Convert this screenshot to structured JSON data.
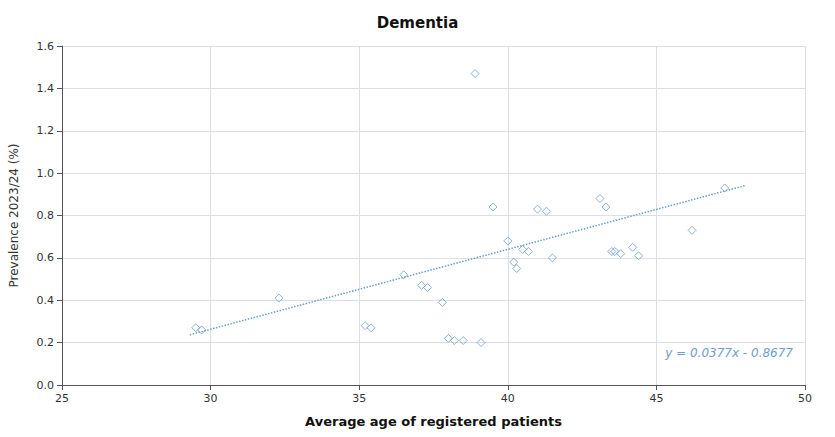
{
  "chart_data": {
    "type": "scatter",
    "title": "Dementia",
    "xlabel": "Average age of registered patients",
    "ylabel": "Prevalence 2023/24 (%)",
    "xlim": [
      25,
      50
    ],
    "ylim": [
      0.0,
      1.6
    ],
    "xticks": [
      25,
      30,
      35,
      40,
      45,
      50
    ],
    "yticks": [
      {
        "value": 0.0,
        "label": "0.0"
      },
      0.2,
      0.4,
      0.6,
      0.8,
      {
        "value": 1.0,
        "label": "1.0"
      },
      1.2,
      1.4,
      1.6
    ],
    "grid": true,
    "series": [
      {
        "type": "scatter",
        "color": "#6e9ec8",
        "marker": "diamond",
        "x": [
          29.5,
          29.7,
          32.3,
          35.2,
          35.4,
          36.5,
          37.1,
          37.3,
          37.8,
          38.0,
          38.2,
          38.5,
          38.9,
          39.1,
          39.5,
          40.0,
          40.2,
          40.3,
          40.5,
          40.7,
          41.0,
          41.3,
          41.5,
          43.1,
          43.3,
          43.5,
          43.6,
          43.8,
          44.2,
          44.4,
          46.2,
          47.3
        ],
        "values": [
          0.27,
          0.26,
          0.41,
          0.28,
          0.27,
          0.52,
          0.47,
          0.46,
          0.39,
          0.22,
          0.21,
          0.21,
          1.47,
          0.2,
          0.84,
          0.68,
          0.58,
          0.55,
          0.64,
          0.63,
          0.83,
          0.82,
          0.6,
          0.88,
          0.84,
          0.63,
          0.63,
          0.62,
          0.65,
          0.61,
          0.73,
          0.93
        ]
      },
      {
        "type": "line",
        "color": "#6e9ec8",
        "line_style": "dotted",
        "x": [
          29.3,
          48.0
        ],
        "values": [
          0.23691,
          0.9419
        ]
      }
    ],
    "annotations": [
      {
        "text": "y = 0.0377x - 0.8677",
        "color": "#6e9ec8"
      }
    ]
  }
}
